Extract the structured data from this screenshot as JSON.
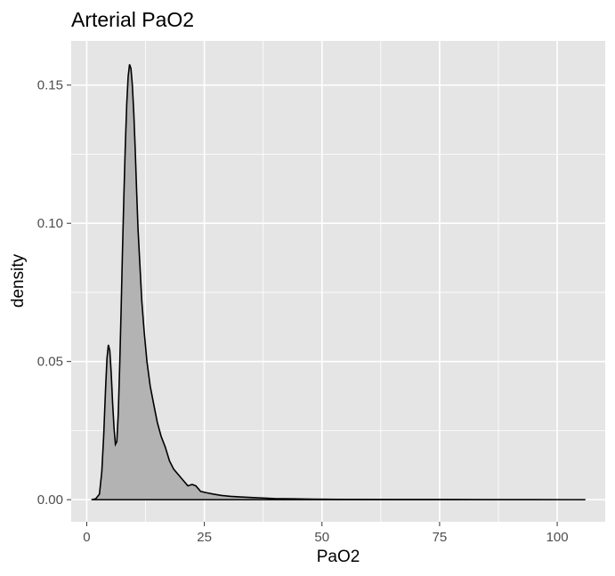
{
  "chart_data": {
    "type": "area",
    "title": "Arterial PaO2",
    "xlabel": "PaO2",
    "ylabel": "density",
    "xlim": [
      -3.3,
      110.2
    ],
    "ylim": [
      -0.008,
      0.166
    ],
    "x_ticks": [
      0,
      25,
      50,
      75,
      100
    ],
    "y_ticks": [
      0.0,
      0.05,
      0.1,
      0.15
    ],
    "x_tick_labels": [
      "0",
      "25",
      "50",
      "75",
      "100"
    ],
    "y_tick_labels": [
      "0.00",
      "0.05",
      "0.10",
      "0.15"
    ],
    "grid": true,
    "legend": "none",
    "colors": {
      "panel": "#e5e5e5",
      "grid": "#ffffff",
      "fill": "#b3b3b3",
      "line": "#000000",
      "tick": "#4d4d4d"
    },
    "series": [
      {
        "x": [
          1.0,
          1.9,
          2.7,
          3.2,
          3.6,
          4.0,
          4.3,
          4.6,
          4.9,
          5.2,
          5.5,
          5.8,
          6.1,
          6.4,
          6.7,
          7.0,
          7.3,
          7.6,
          7.9,
          8.2,
          8.5,
          8.8,
          9.1,
          9.4,
          9.7,
          10.0,
          10.3,
          10.6,
          10.9,
          11.3,
          11.7,
          12.2,
          12.8,
          13.5,
          14.3,
          15.0,
          15.8,
          16.7,
          17.6,
          18.5,
          19.5,
          20.5,
          21.5,
          22.4,
          23.2,
          24.2,
          25.5,
          27.0,
          28.7,
          30.7,
          32.7,
          35.0,
          37.5,
          40.0,
          44.0,
          48.0,
          55.0,
          65.0,
          75.0,
          85.0,
          95.0,
          106.0
        ],
        "y": [
          0.0,
          0.0003,
          0.002,
          0.01,
          0.023,
          0.04,
          0.051,
          0.056,
          0.054,
          0.046,
          0.035,
          0.026,
          0.02,
          0.021,
          0.031,
          0.048,
          0.068,
          0.09,
          0.11,
          0.128,
          0.143,
          0.153,
          0.1575,
          0.156,
          0.15,
          0.14,
          0.127,
          0.112,
          0.098,
          0.085,
          0.072,
          0.061,
          0.05,
          0.041,
          0.034,
          0.028,
          0.023,
          0.019,
          0.014,
          0.011,
          0.009,
          0.007,
          0.005,
          0.0055,
          0.005,
          0.003,
          0.0025,
          0.002,
          0.0015,
          0.0012,
          0.001,
          0.0008,
          0.0006,
          0.0004,
          0.0003,
          0.0002,
          0.0001,
          8e-05,
          5e-05,
          3e-05,
          1e-05,
          0.0
        ]
      }
    ]
  }
}
